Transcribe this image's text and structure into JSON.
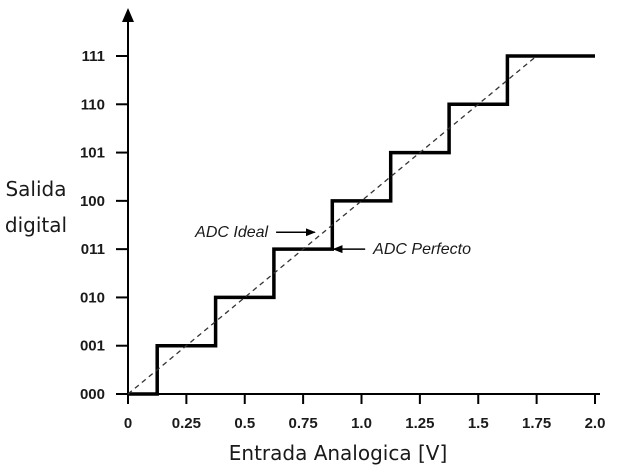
{
  "chart_data": {
    "type": "line",
    "title": "",
    "xlabel": "Entrada Analogica [V]",
    "ylabel_lines": [
      "Salida",
      "digital"
    ],
    "x_ticks": [
      "0",
      "0.25",
      "0.5",
      "0.75",
      "1.0",
      "1.25",
      "1.5",
      "1.75",
      "2.0"
    ],
    "x_tick_values": [
      0,
      0.25,
      0.5,
      0.75,
      1.0,
      1.25,
      1.5,
      1.75,
      2.0
    ],
    "y_ticks": [
      "000",
      "001",
      "010",
      "011",
      "100",
      "101",
      "110",
      "111"
    ],
    "y_tick_values": [
      0,
      1,
      2,
      3,
      4,
      5,
      6,
      7
    ],
    "xlim": [
      0,
      2.0
    ],
    "ylim": [
      0,
      7
    ],
    "grid": false,
    "series": [
      {
        "name": "ADC Perfecto",
        "style": "solid-step",
        "x": [
          0,
          0.125,
          0.125,
          0.375,
          0.375,
          0.625,
          0.625,
          0.875,
          0.875,
          1.125,
          1.125,
          1.375,
          1.375,
          1.625,
          1.625,
          2.0
        ],
        "y": [
          0,
          0,
          1,
          1,
          2,
          2,
          3,
          3,
          4,
          4,
          5,
          5,
          6,
          6,
          7,
          7
        ]
      },
      {
        "name": "ADC Ideal",
        "style": "dashed",
        "x": [
          0,
          1.75
        ],
        "y": [
          0,
          7
        ]
      }
    ],
    "annotations": [
      {
        "text": "ADC Ideal",
        "x": 0.6,
        "y": 3.35,
        "arrow_to": [
          0.8,
          3.35
        ],
        "anchor": "end"
      },
      {
        "text": "ADC Perfecto",
        "x": 1.05,
        "y": 3.0,
        "arrow_to": [
          0.88,
          3.0
        ],
        "anchor": "start"
      }
    ],
    "colors": {
      "axis": "#000000",
      "step": "#000000",
      "ideal": "#333333",
      "text": "#1a1a1a"
    }
  }
}
